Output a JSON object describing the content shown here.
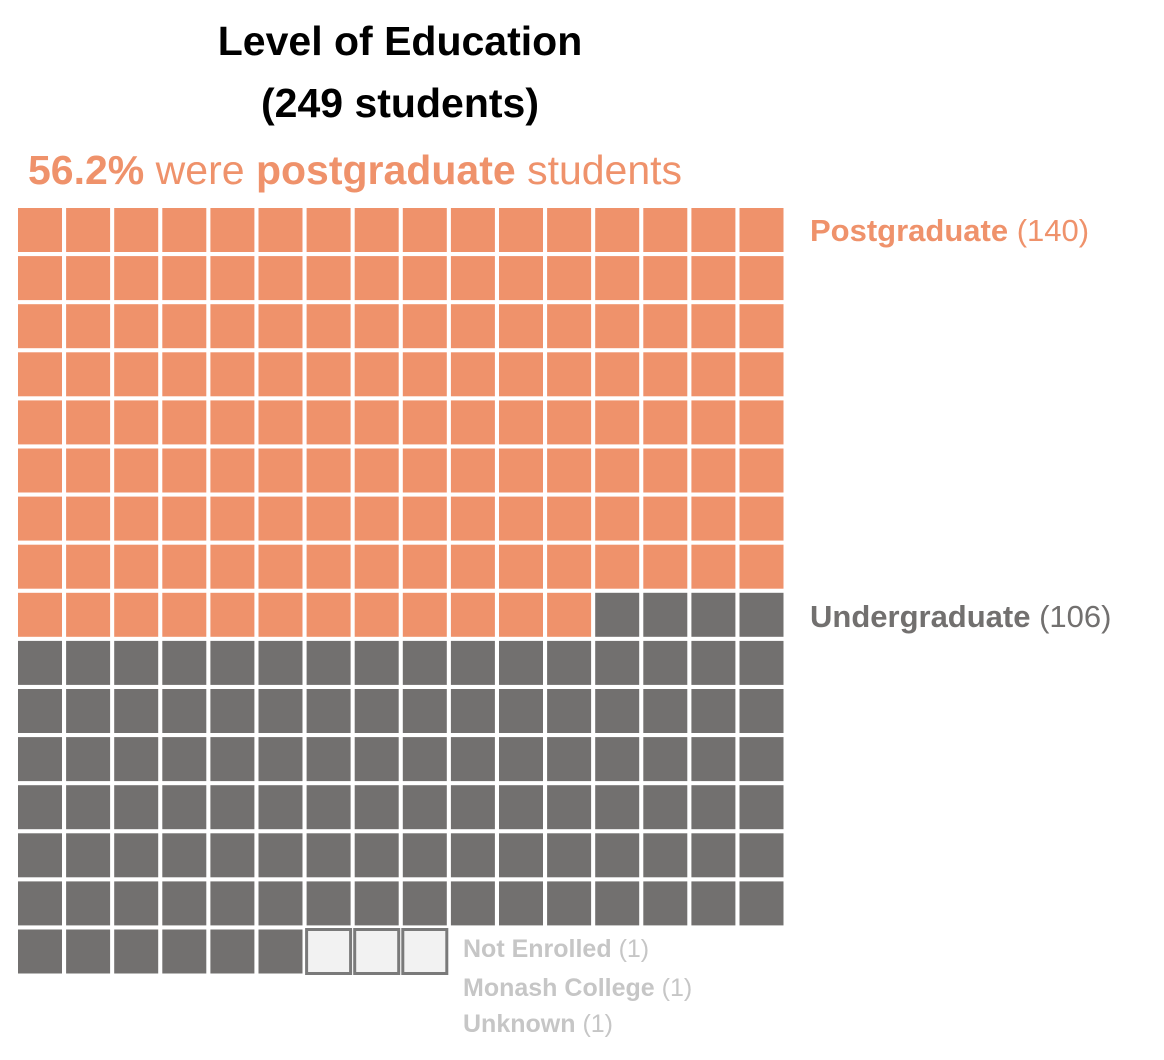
{
  "title_line1": "Level of Education",
  "title_line2": "(249 students)",
  "subtitle": {
    "percent": "56.2%",
    "text1": "were",
    "emph": "postgraduate",
    "text2": "students"
  },
  "colors": {
    "postgraduate": "#ef926b",
    "undergraduate": "#72706f",
    "other_fill": "#f2f2f2",
    "other_border": "#7a7a7a",
    "other_label": "#c6c6c6",
    "grid_gap": "#ffffff"
  },
  "chart_data": {
    "type": "waffle",
    "columns": 16,
    "total": 249,
    "categories": [
      {
        "name": "Postgraduate",
        "count": 140,
        "label": "(140)"
      },
      {
        "name": "Undergraduate",
        "count": 106,
        "label": "(106)"
      },
      {
        "name": "Not Enrolled",
        "count": 1,
        "label": "(1)"
      },
      {
        "name": "Monash College",
        "count": 1,
        "label": "(1)"
      },
      {
        "name": "Unknown",
        "count": 1,
        "label": "(1)"
      }
    ]
  }
}
